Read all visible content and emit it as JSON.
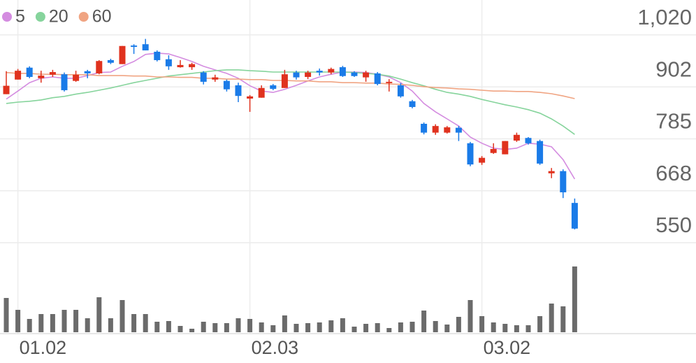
{
  "chart_data": {
    "type": "candlestick",
    "categories": [
      null,
      "01.02",
      null,
      null,
      null,
      null,
      null,
      null,
      null,
      null,
      null,
      null,
      null,
      null,
      null,
      null,
      null,
      null,
      null,
      null,
      null,
      "02.03",
      null,
      null,
      null,
      null,
      null,
      null,
      null,
      null,
      null,
      null,
      null,
      null,
      null,
      null,
      null,
      null,
      null,
      null,
      null,
      "03.02",
      null,
      null,
      null,
      null,
      null,
      null,
      null,
      null
    ],
    "open": [
      886,
      919,
      946,
      922,
      930,
      931,
      916,
      938,
      933,
      963,
      954,
      996,
      999,
      982,
      965,
      947,
      947,
      935,
      919,
      916,
      906,
      876,
      878,
      906,
      900,
      935,
      925,
      939,
      935,
      947,
      935,
      924,
      933,
      911,
      906,
      870,
      819,
      799,
      799,
      810,
      775,
      731,
      753,
      750,
      781,
      787,
      780,
      707,
      712,
      640
    ],
    "high": [
      938,
      943,
      949,
      939,
      941,
      935,
      939,
      941,
      963,
      966,
      995,
      999,
      1011,
      985,
      974,
      963,
      957,
      938,
      930,
      919,
      912,
      884,
      906,
      909,
      941,
      939,
      939,
      944,
      946,
      950,
      938,
      939,
      936,
      920,
      911,
      873,
      822,
      818,
      814,
      814,
      778,
      746,
      775,
      780,
      799,
      789,
      783,
      719,
      716,
      650
    ],
    "low": [
      886,
      919,
      922,
      912,
      925,
      892,
      914,
      922,
      931,
      954,
      954,
      977,
      985,
      960,
      941,
      946,
      941,
      908,
      914,
      892,
      868,
      846,
      878,
      895,
      900,
      919,
      920,
      928,
      931,
      925,
      925,
      914,
      906,
      892,
      878,
      854,
      795,
      794,
      797,
      780,
      723,
      726,
      751,
      750,
      778,
      772,
      726,
      696,
      651,
      580
    ],
    "close": [
      905,
      939,
      925,
      928,
      936,
      895,
      930,
      933,
      961,
      957,
      995,
      993,
      985,
      963,
      949,
      952,
      954,
      914,
      924,
      897,
      882,
      881,
      900,
      898,
      931,
      924,
      935,
      935,
      943,
      927,
      927,
      935,
      909,
      914,
      881,
      857,
      799,
      814,
      811,
      799,
      727,
      742,
      762,
      780,
      794,
      775,
      729,
      712,
      664,
      582
    ],
    "up_color": "#e0321e",
    "down_color": "#1a7be8",
    "series": [
      {
        "name": "5",
        "color": "#d48ce0",
        "values": [
          875,
          893,
          912,
          922,
          925,
          922,
          922,
          928,
          935,
          936,
          949,
          960,
          976,
          979,
          977,
          969,
          960,
          949,
          941,
          933,
          922,
          905,
          893,
          890,
          897,
          906,
          916,
          925,
          931,
          936,
          936,
          935,
          931,
          925,
          912,
          893,
          865,
          846,
          830,
          814,
          789,
          775,
          764,
          761,
          764,
          775,
          773,
          767,
          738,
          694
        ]
      },
      {
        "name": "20",
        "color": "#86d49c",
        "values": [
          865,
          868,
          870,
          873,
          878,
          881,
          886,
          890,
          895,
          900,
          906,
          912,
          917,
          922,
          927,
          930,
          933,
          936,
          939,
          941,
          941,
          939,
          938,
          936,
          936,
          936,
          936,
          936,
          936,
          936,
          935,
          933,
          931,
          927,
          920,
          912,
          905,
          897,
          890,
          886,
          881,
          874,
          868,
          862,
          857,
          851,
          843,
          830,
          814,
          795
        ]
      },
      {
        "name": "60",
        "color": "#f0a482",
        "values": [
          935,
          933,
          933,
          931,
          931,
          930,
          930,
          930,
          928,
          928,
          928,
          927,
          927,
          925,
          925,
          924,
          924,
          922,
          922,
          920,
          920,
          919,
          919,
          917,
          917,
          916,
          916,
          914,
          914,
          912,
          912,
          911,
          911,
          909,
          908,
          906,
          903,
          901,
          900,
          898,
          897,
          895,
          893,
          893,
          892,
          892,
          890,
          887,
          882,
          876
        ]
      }
    ],
    "volume": {
      "color": "#6b6b6b",
      "ylim": [
        0,
        100
      ],
      "values": [
        49,
        32,
        19,
        26,
        26,
        32,
        32,
        20,
        50,
        20,
        46,
        26,
        26,
        15,
        16,
        9,
        5,
        15,
        13,
        13,
        20,
        19,
        14,
        10,
        24,
        12,
        13,
        14,
        17,
        20,
        8,
        12,
        13,
        6,
        14,
        15,
        31,
        16,
        11,
        22,
        46,
        23,
        14,
        12,
        10,
        10,
        23,
        41,
        37,
        94
      ]
    },
    "ylim": [
      470,
      1099
    ],
    "yticks": [
      550,
      {
        "value": 667.5,
        "label": "668"
      },
      785,
      {
        "value": 902.5,
        "label": "902"
      },
      {
        "value": 1020,
        "label": "1,020"
      }
    ],
    "grid": true
  }
}
